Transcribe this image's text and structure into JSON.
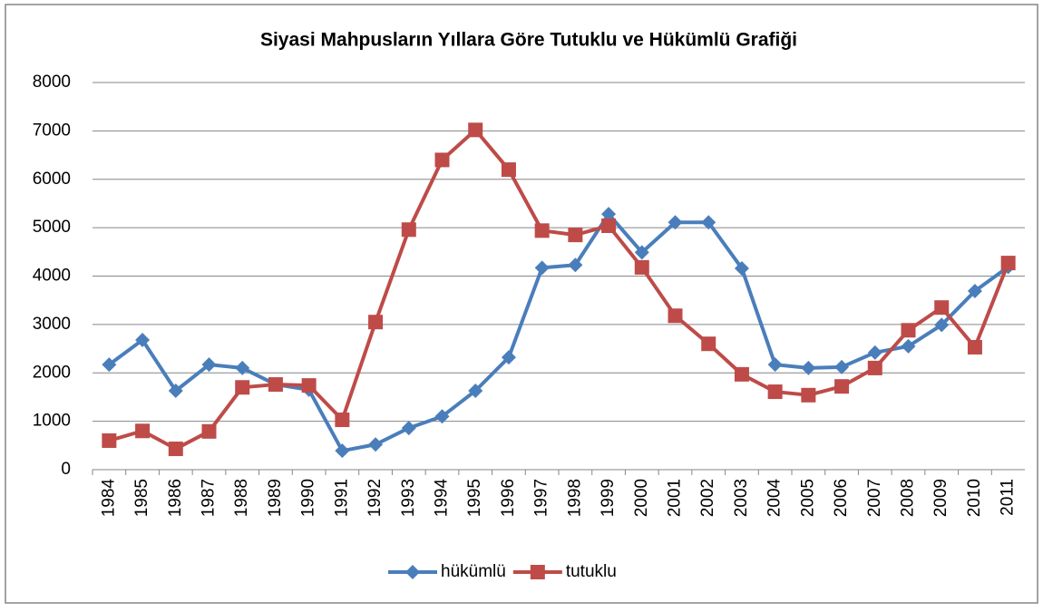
{
  "chart_data": {
    "type": "line",
    "title": "Siyasi Mahpusların Yıllara Göre Tutuklu ve Hükümlü Grafiği",
    "categories": [
      "1984",
      "1985",
      "1986",
      "1987",
      "1988",
      "1989",
      "1990",
      "1991",
      "1992",
      "1993",
      "1994",
      "1995",
      "1996",
      "1997",
      "1998",
      "1999",
      "2000",
      "2001",
      "2002",
      "2003",
      "2004",
      "2005",
      "2006",
      "2007",
      "2008",
      "2009",
      "2010",
      "2011"
    ],
    "series": [
      {
        "name": "hükümlü",
        "color": "#4a7ebb",
        "marker": "diamond",
        "values": [
          2170,
          2680,
          1630,
          2170,
          2100,
          1760,
          1650,
          390,
          520,
          860,
          1100,
          1630,
          2320,
          4170,
          4230,
          5280,
          4490,
          5110,
          5110,
          4160,
          2170,
          2100,
          2120,
          2420,
          2550,
          2990,
          3690,
          4190
        ]
      },
      {
        "name": "tutuklu",
        "color": "#be4b48",
        "marker": "square",
        "values": [
          600,
          800,
          430,
          790,
          1700,
          1760,
          1740,
          1030,
          3050,
          4960,
          6400,
          7020,
          6200,
          4940,
          4850,
          5040,
          4180,
          3180,
          2600,
          1970,
          1610,
          1540,
          1720,
          2100,
          2880,
          3350,
          2530,
          4270
        ]
      }
    ],
    "ylim": [
      0,
      8000
    ],
    "yticks": [
      0,
      1000,
      2000,
      3000,
      4000,
      5000,
      6000,
      7000,
      8000
    ],
    "grid": true,
    "legend": "bottom"
  }
}
